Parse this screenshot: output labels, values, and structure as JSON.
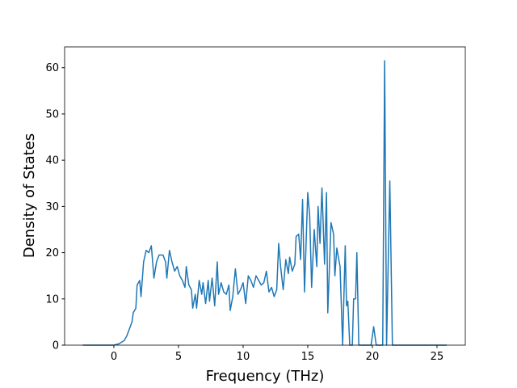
{
  "chart_data": {
    "type": "line",
    "xlabel": "Frequency (THz)",
    "ylabel": "Density of States",
    "xlim": [
      -3.81,
      27.19
    ],
    "ylim": [
      0,
      64.5
    ],
    "xticks": [
      0,
      5,
      10,
      15,
      20,
      25
    ],
    "yticks": [
      0,
      10,
      20,
      30,
      40,
      50,
      60
    ],
    "grid": false,
    "series": [
      {
        "color": "#1f77b4",
        "x": [
          -2.4,
          0,
          0.4,
          0.8,
          1.0,
          1.2,
          1.4,
          1.5,
          1.7,
          1.8,
          2.0,
          2.1,
          2.3,
          2.5,
          2.7,
          2.9,
          3.1,
          3.3,
          3.5,
          3.8,
          4.0,
          4.1,
          4.3,
          4.5,
          4.7,
          4.9,
          5.1,
          5.3,
          5.5,
          5.6,
          5.8,
          6.0,
          6.1,
          6.3,
          6.4,
          6.6,
          6.8,
          6.9,
          7.1,
          7.3,
          7.4,
          7.6,
          7.8,
          8.0,
          8.1,
          8.3,
          8.5,
          8.7,
          8.9,
          9.0,
          9.2,
          9.4,
          9.6,
          9.8,
          10.0,
          10.2,
          10.4,
          10.6,
          10.8,
          11.0,
          11.2,
          11.4,
          11.6,
          11.8,
          12.0,
          12.2,
          12.4,
          12.6,
          12.75,
          12.9,
          13.1,
          13.3,
          13.5,
          13.6,
          13.8,
          14.0,
          14.1,
          14.3,
          14.45,
          14.6,
          14.75,
          15.0,
          15.15,
          15.3,
          15.5,
          15.7,
          15.8,
          15.95,
          16.1,
          16.3,
          16.45,
          16.55,
          16.8,
          17.0,
          17.1,
          17.25,
          17.5,
          17.7,
          17.9,
          18.0,
          18.1,
          18.25,
          18.45,
          18.55,
          18.7,
          18.8,
          18.95,
          19.9,
          20.1,
          20.3,
          20.8,
          20.95,
          21.1,
          21.35,
          21.55,
          25.75
        ],
        "values": [
          0,
          0,
          0.3,
          1,
          2,
          3.5,
          5,
          7,
          8,
          13,
          14,
          10.5,
          18,
          20.5,
          20,
          21.5,
          14.5,
          18,
          19.5,
          19.5,
          18,
          14.5,
          20.5,
          18,
          16,
          17,
          15,
          14,
          12.5,
          17,
          13,
          12,
          8,
          11,
          8,
          14,
          11,
          13.5,
          9,
          14,
          9.5,
          14.5,
          8.5,
          18,
          11,
          13.5,
          11.5,
          11,
          13,
          7.5,
          10.5,
          16.5,
          11,
          12,
          13.5,
          9,
          15,
          14,
          12.5,
          15,
          14,
          13,
          13.5,
          16,
          11.5,
          12.5,
          10.5,
          12,
          22,
          17,
          12,
          18.5,
          15.5,
          19,
          16,
          17.5,
          23.5,
          24,
          18.5,
          31.5,
          11.5,
          33,
          28,
          12.5,
          25,
          17,
          30,
          22,
          34,
          17.5,
          33,
          7,
          26.5,
          24,
          15,
          21,
          17,
          0,
          21.5,
          8.5,
          9.5,
          0,
          0,
          10,
          10,
          20,
          0,
          0,
          4,
          0,
          0,
          61.5,
          0,
          35.5,
          0,
          0
        ]
      }
    ]
  }
}
